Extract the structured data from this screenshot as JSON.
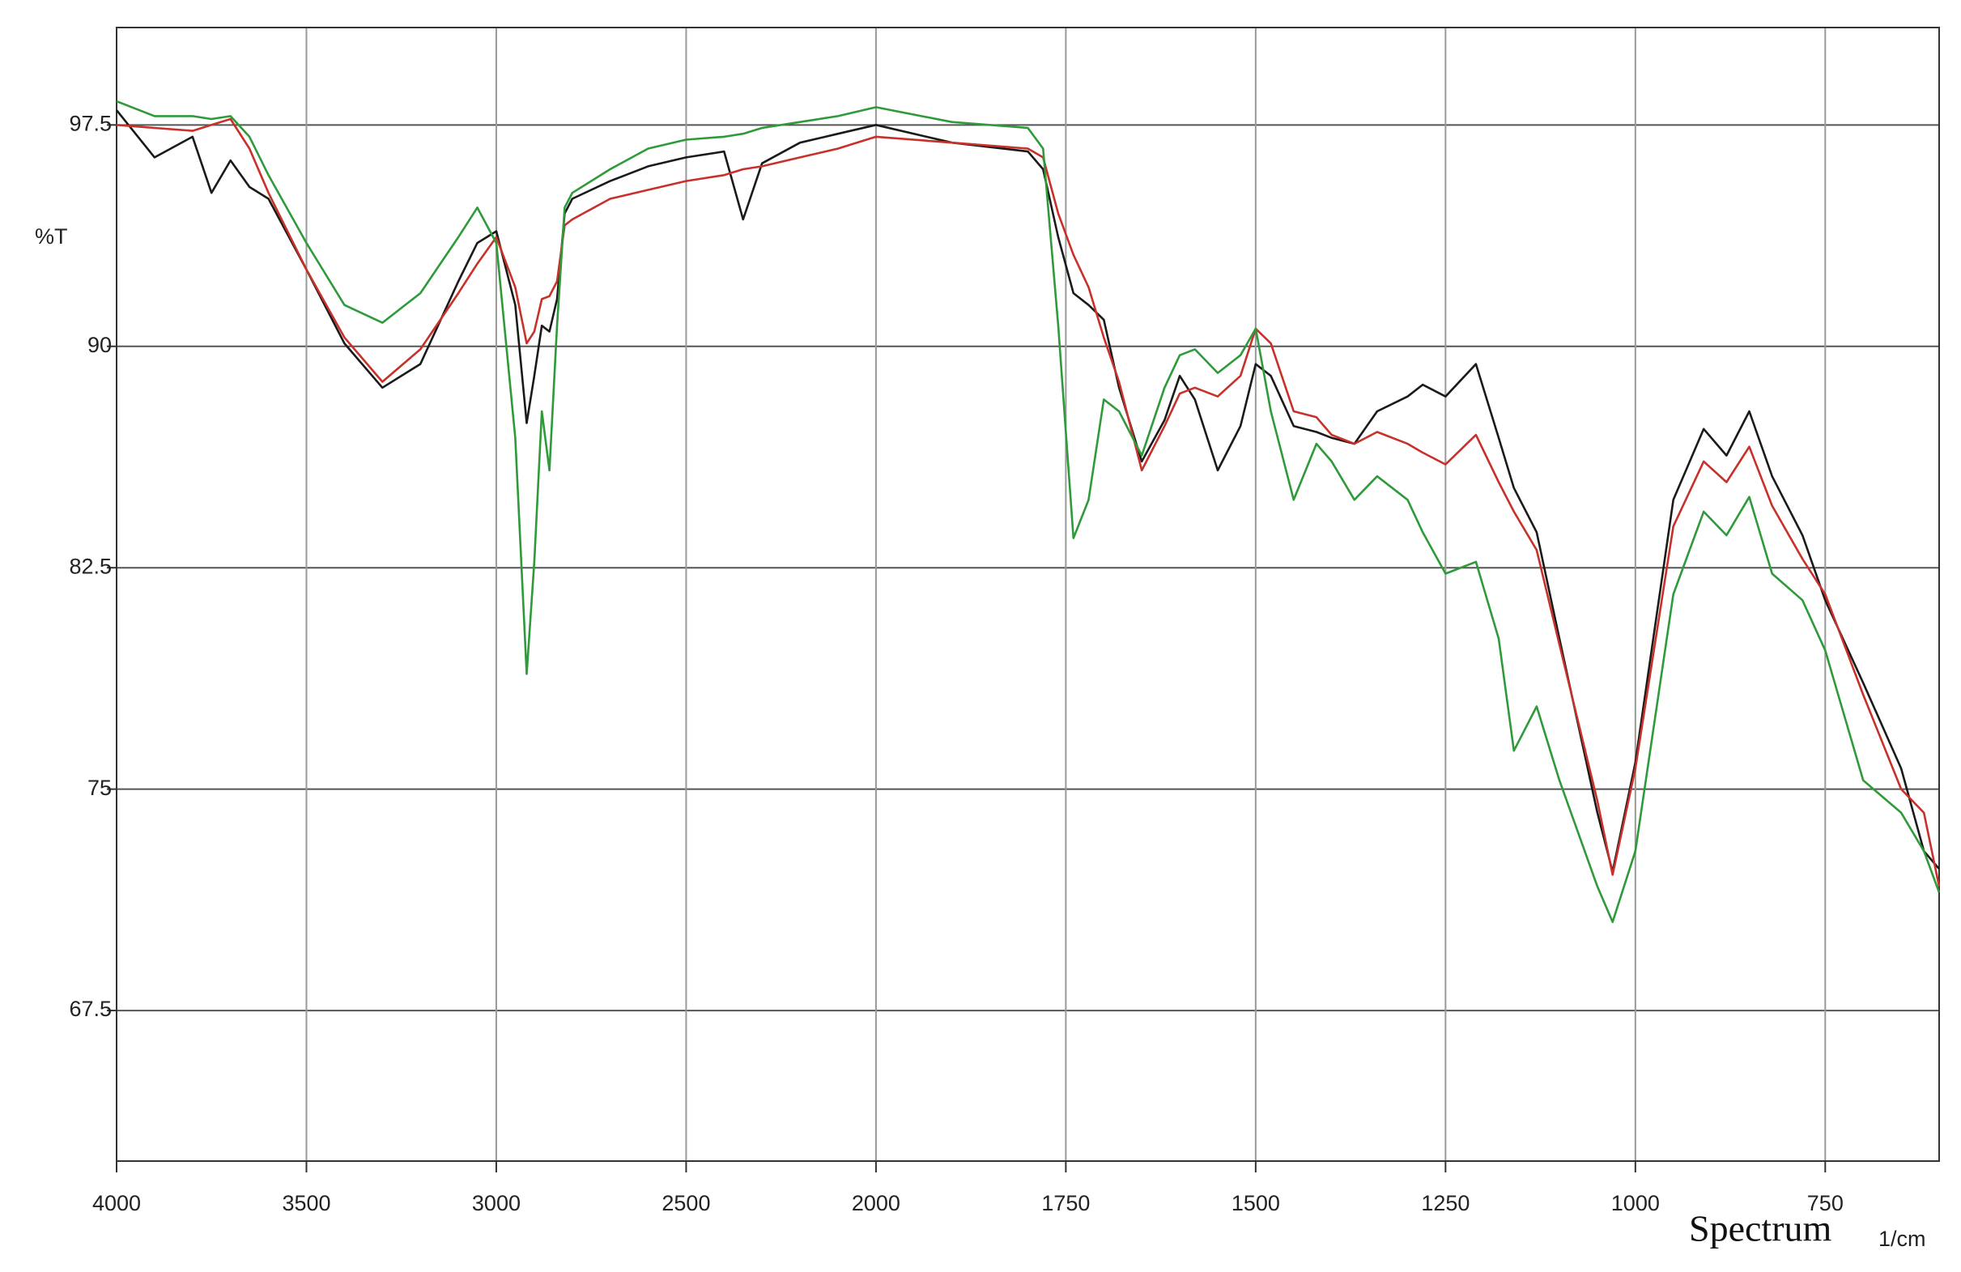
{
  "chart_data": {
    "type": "line",
    "ylabel": "%T",
    "xlabel": "Spectrum",
    "xunit": "1/cm",
    "xlim": [
      4000,
      600
    ],
    "x_scale_break": 2000,
    "x_scale_factor": 2,
    "xticks": [
      4000,
      3500,
      3000,
      2500,
      2000,
      1750,
      1500,
      1250,
      1000,
      750
    ],
    "ylim": [
      62.4,
      100.8
    ],
    "yticks": [
      97.5,
      90,
      82.5,
      75,
      67.5
    ],
    "grid": true,
    "x": [
      4000,
      3900,
      3800,
      3750,
      3700,
      3650,
      3600,
      3500,
      3400,
      3300,
      3200,
      3100,
      3050,
      3000,
      2950,
      2920,
      2900,
      2880,
      2860,
      2840,
      2820,
      2800,
      2700,
      2600,
      2500,
      2400,
      2350,
      2300,
      2200,
      2100,
      2000,
      1900,
      1800,
      1780,
      1760,
      1740,
      1720,
      1700,
      1680,
      1650,
      1620,
      1600,
      1580,
      1550,
      1520,
      1500,
      1480,
      1450,
      1420,
      1400,
      1370,
      1340,
      1300,
      1280,
      1250,
      1210,
      1180,
      1160,
      1130,
      1100,
      1050,
      1030,
      1000,
      950,
      910,
      880,
      850,
      820,
      780,
      750,
      700,
      650,
      620,
      600
    ],
    "series": [
      {
        "color": "#1a1a1a",
        "values": [
          98.0,
          96.4,
          97.1,
          95.2,
          96.3,
          95.4,
          95.0,
          92.6,
          90.1,
          88.6,
          89.4,
          92.2,
          93.5,
          93.9,
          91.4,
          87.4,
          89.0,
          90.7,
          90.5,
          91.6,
          94.5,
          95.0,
          95.6,
          96.1,
          96.4,
          96.6,
          94.3,
          96.2,
          96.9,
          97.2,
          97.5,
          96.9,
          96.6,
          96.0,
          93.7,
          91.8,
          91.4,
          90.9,
          88.6,
          86.1,
          87.5,
          89.0,
          88.2,
          85.8,
          87.3,
          89.4,
          89.0,
          87.3,
          87.1,
          86.9,
          86.7,
          87.8,
          88.3,
          88.7,
          88.3,
          89.4,
          86.9,
          85.2,
          83.7,
          80.1,
          74.2,
          72.2,
          75.9,
          84.8,
          87.2,
          86.3,
          87.8,
          85.6,
          83.6,
          81.4,
          78.6,
          75.7,
          72.9,
          72.3
        ]
      },
      {
        "color": "#c8302a",
        "values": [
          97.5,
          97.4,
          97.3,
          97.5,
          97.7,
          96.7,
          95.2,
          92.6,
          90.3,
          88.8,
          89.9,
          91.8,
          92.8,
          93.7,
          92.0,
          90.1,
          90.5,
          91.6,
          91.7,
          92.2,
          94.1,
          94.3,
          95.0,
          95.3,
          95.6,
          95.8,
          96.0,
          96.1,
          96.4,
          96.7,
          97.1,
          96.9,
          96.7,
          96.4,
          94.5,
          93.1,
          92.0,
          90.3,
          88.8,
          85.8,
          87.3,
          88.4,
          88.6,
          88.3,
          89.0,
          90.6,
          90.1,
          87.8,
          87.6,
          87.0,
          86.7,
          87.1,
          86.7,
          86.4,
          86.0,
          87.0,
          85.4,
          84.4,
          83.1,
          79.9,
          74.6,
          72.1,
          75.7,
          83.9,
          86.1,
          85.4,
          86.6,
          84.6,
          82.8,
          81.6,
          78.2,
          75.0,
          74.2,
          71.7
        ]
      },
      {
        "color": "#2e9a3a",
        "values": [
          98.3,
          97.8,
          97.8,
          97.7,
          97.8,
          97.1,
          95.8,
          93.5,
          91.4,
          90.8,
          91.8,
          93.7,
          94.7,
          93.5,
          86.9,
          78.9,
          82.7,
          87.8,
          85.8,
          90.7,
          94.7,
          95.2,
          96.0,
          96.7,
          97.0,
          97.1,
          97.2,
          97.4,
          97.6,
          97.8,
          98.1,
          97.6,
          97.4,
          96.7,
          90.7,
          83.5,
          84.8,
          88.2,
          87.8,
          86.3,
          88.6,
          89.7,
          89.9,
          89.1,
          89.7,
          90.6,
          87.8,
          84.8,
          86.7,
          86.1,
          84.8,
          85.6,
          84.8,
          83.7,
          82.3,
          82.7,
          80.1,
          76.3,
          77.8,
          75.3,
          71.7,
          70.5,
          72.9,
          81.6,
          84.4,
          83.6,
          84.9,
          82.3,
          81.4,
          79.7,
          75.3,
          74.2,
          72.9,
          71.5
        ]
      }
    ]
  }
}
